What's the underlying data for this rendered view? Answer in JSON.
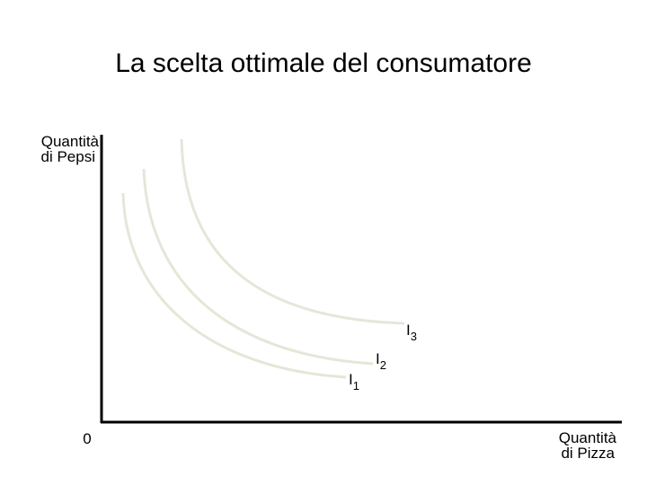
{
  "title": "La scelta ottimale del consumatore",
  "y_axis": {
    "label_lines": [
      "Quantità",
      "di Pepsi"
    ]
  },
  "x_axis": {
    "label_lines": [
      "Quantità",
      "di Pizza"
    ]
  },
  "origin": "0",
  "curves": [
    {
      "label": {
        "main": "I",
        "sub": "1"
      }
    },
    {
      "label": {
        "main": "I",
        "sub": "2"
      }
    },
    {
      "label": {
        "main": "I",
        "sub": "3"
      }
    }
  ]
}
